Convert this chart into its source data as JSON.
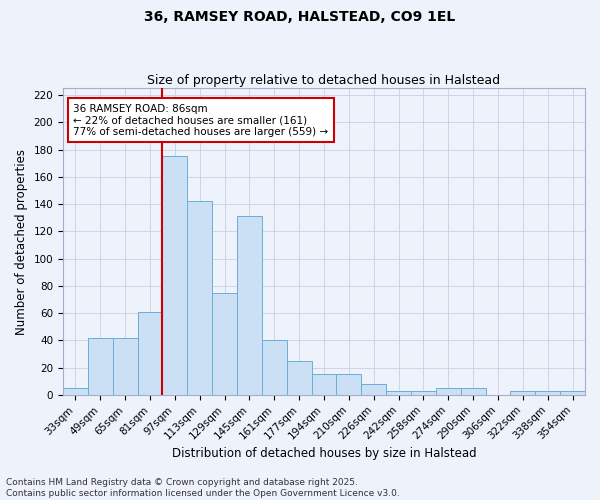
{
  "title": "36, RAMSEY ROAD, HALSTEAD, CO9 1EL",
  "subtitle": "Size of property relative to detached houses in Halstead",
  "xlabel": "Distribution of detached houses by size in Halstead",
  "ylabel": "Number of detached properties",
  "bins": [
    "33sqm",
    "49sqm",
    "65sqm",
    "81sqm",
    "97sqm",
    "113sqm",
    "129sqm",
    "145sqm",
    "161sqm",
    "177sqm",
    "194sqm",
    "210sqm",
    "226sqm",
    "242sqm",
    "258sqm",
    "274sqm",
    "290sqm",
    "306sqm",
    "322sqm",
    "338sqm",
    "354sqm"
  ],
  "values": [
    5,
    42,
    42,
    61,
    175,
    142,
    75,
    131,
    40,
    25,
    15,
    15,
    8,
    3,
    3,
    5,
    5,
    0,
    3,
    3,
    3
  ],
  "bar_color": "#cce0f5",
  "bar_edge_color": "#6aaed6",
  "vline_x": 4,
  "vline_color": "#cc0000",
  "annotation_text": "36 RAMSEY ROAD: 86sqm\n← 22% of detached houses are smaller (161)\n77% of semi-detached houses are larger (559) →",
  "annotation_box_color": "#ffffff",
  "annotation_box_edge": "#cc0000",
  "ylim": [
    0,
    225
  ],
  "yticks": [
    0,
    20,
    40,
    60,
    80,
    100,
    120,
    140,
    160,
    180,
    200,
    220
  ],
  "footer": "Contains HM Land Registry data © Crown copyright and database right 2025.\nContains public sector information licensed under the Open Government Licence v3.0.",
  "bg_color": "#eef2fb",
  "grid_color": "#c8d0e8",
  "title_fontsize": 10,
  "subtitle_fontsize": 9,
  "axis_label_fontsize": 8.5,
  "tick_fontsize": 7.5,
  "footer_fontsize": 6.5,
  "annot_fontsize": 7.5
}
